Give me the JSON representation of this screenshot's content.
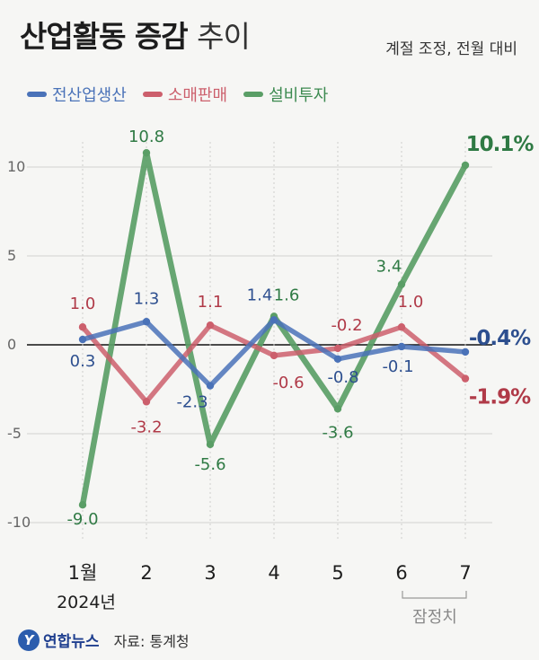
{
  "header": {
    "title_bold": "산업활동 증감",
    "title_light": "추이",
    "subtitle": "계절 조정, 전월 대비"
  },
  "legend": [
    {
      "name": "전산업생산",
      "color": "#4a72b8"
    },
    {
      "name": "소매판매",
      "color": "#cc5f6c"
    },
    {
      "name": "설비투자",
      "color": "#5a9e66"
    }
  ],
  "chart_data": {
    "type": "line",
    "title": "산업활동 증감 추이",
    "subtitle": "계절 조정, 전월 대비",
    "categories": [
      "1월",
      "2",
      "3",
      "4",
      "5",
      "6",
      "7"
    ],
    "year_label": "2024년",
    "preliminary_label": "잠정치",
    "y_ticks": [
      "10",
      "5",
      "0",
      "-5",
      "-10"
    ],
    "ylim": [
      -10,
      10
    ],
    "series": [
      {
        "name": "전산업생산",
        "values": [
          0.3,
          1.3,
          -2.3,
          1.4,
          -0.8,
          -0.1,
          -0.4
        ],
        "labels": [
          "0.3",
          "1.3",
          "-2.3",
          "1.4",
          "-0.8",
          "-0.1",
          "-0.4%"
        ]
      },
      {
        "name": "소매판매",
        "values": [
          1.0,
          -3.2,
          1.1,
          -0.6,
          -0.2,
          1.0,
          -1.9
        ],
        "labels": [
          "1.0",
          "-3.2",
          "1.1",
          "-0.6",
          "-0.2",
          "1.0",
          "-1.9%"
        ]
      },
      {
        "name": "설비투자",
        "values": [
          -9.0,
          10.8,
          -5.6,
          1.6,
          -3.6,
          3.4,
          10.1
        ],
        "labels": [
          "-9.0",
          "10.8",
          "-5.6",
          "1.6",
          "-3.6",
          "3.4",
          "10.1%"
        ]
      }
    ],
    "colors": {
      "blue_line": "#4a72b8",
      "blue_text": "#2d4f8f",
      "red_line": "#cc5f6c",
      "red_text": "#b03a48",
      "green_line": "#5a9e66",
      "green_text": "#2f7a44"
    }
  },
  "footer": {
    "logo_mark": "Y",
    "logo_text": "연합뉴스",
    "source": "자료: 통계청"
  }
}
